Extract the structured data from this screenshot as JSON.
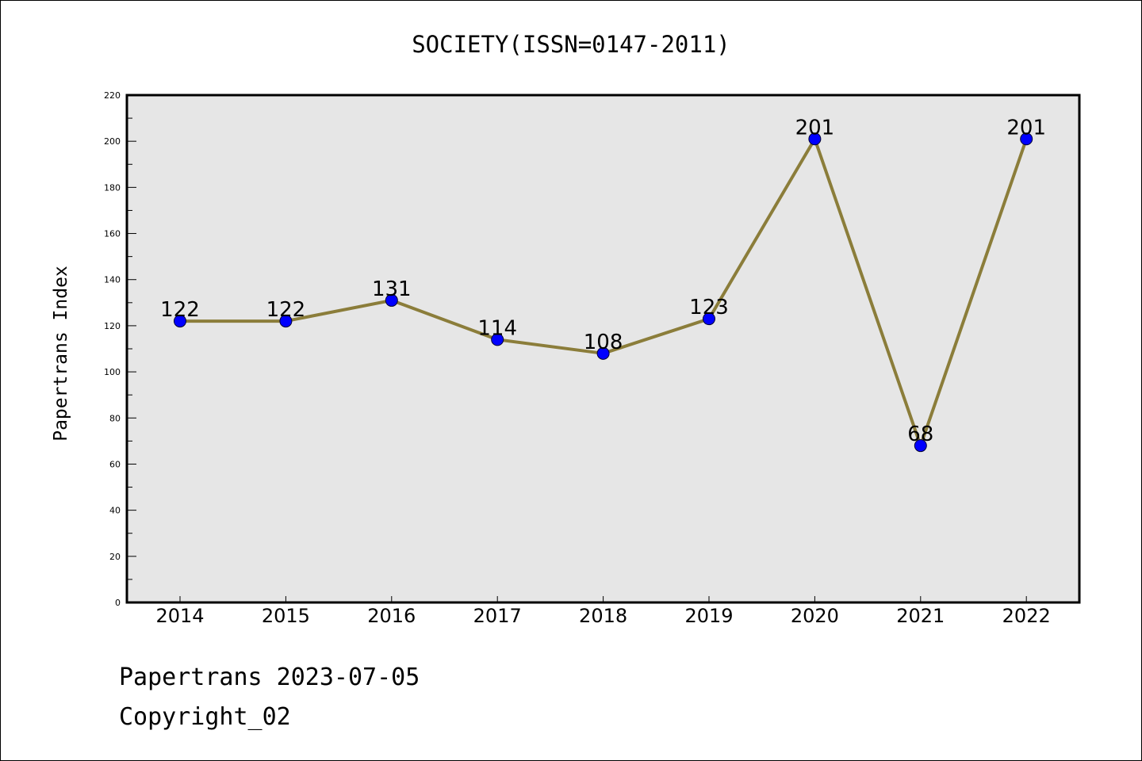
{
  "chart_data": {
    "type": "line",
    "title": "SOCIETY(ISSN=0147-2011)",
    "xlabel": "",
    "ylabel": "Papertrans Index",
    "categories": [
      "2014",
      "2015",
      "2016",
      "2017",
      "2018",
      "2019",
      "2020",
      "2021",
      "2022"
    ],
    "series": [
      {
        "name": "Papertrans Index",
        "values": [
          122,
          122,
          131,
          114,
          108,
          123,
          201,
          68,
          201
        ],
        "line_color": "#8b7d3a",
        "marker_color": "#0000ff"
      }
    ],
    "data_labels": [
      "122",
      "122",
      "131",
      "114",
      "108",
      "123",
      "201",
      "68",
      "201"
    ],
    "ylim": [
      0,
      220
    ],
    "yticks": [
      0,
      20,
      40,
      60,
      80,
      100,
      120,
      140,
      160,
      180,
      200,
      220
    ],
    "grid": false,
    "plot_background": "#e6e6e6"
  },
  "footer": {
    "line1": "Papertrans 2023-07-05",
    "line2": "Copyright_02"
  }
}
